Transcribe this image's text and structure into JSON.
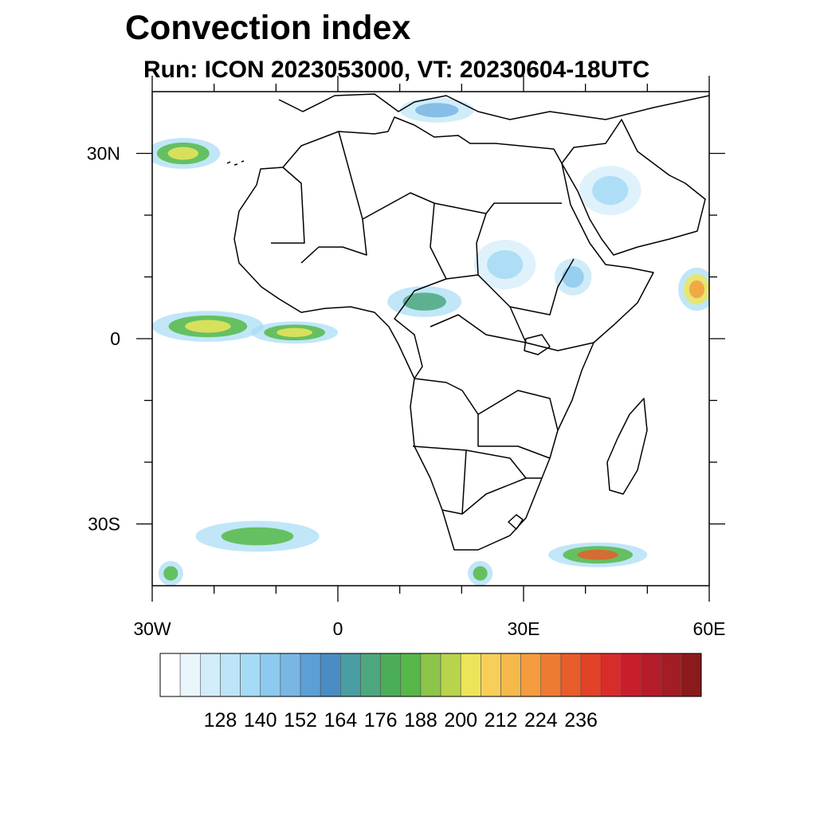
{
  "header": {
    "title": "Convection index",
    "subtitle": "Run: ICON 2023053000,  VT: 20230604-18UTC"
  },
  "map": {
    "lon_range": [
      -30,
      60
    ],
    "lat_range": [
      -40,
      40
    ],
    "x_ticks": [
      {
        "value": -30,
        "label": "30W"
      },
      {
        "value": 0,
        "label": "0"
      },
      {
        "value": 30,
        "label": "30E"
      },
      {
        "value": 60,
        "label": "60E"
      }
    ],
    "y_ticks": [
      {
        "value": 30,
        "label": "30N"
      },
      {
        "value": 0,
        "label": "0"
      },
      {
        "value": -30,
        "label": "30S"
      }
    ],
    "minor_x_ticks": [
      -20,
      -10,
      10,
      20,
      40,
      50
    ],
    "minor_y_ticks": [
      20,
      10,
      -10,
      -20
    ]
  },
  "colorbar": {
    "labels": [
      "128",
      "140",
      "152",
      "164",
      "176",
      "188",
      "200",
      "212",
      "224",
      "236"
    ],
    "colors": [
      "#ffffff",
      "#eaf5fc",
      "#d2ecf9",
      "#bde4f7",
      "#a5dbf5",
      "#8ccaef",
      "#7ab6e4",
      "#5c9fd5",
      "#4a8cc4",
      "#4a9ea3",
      "#4ca77e",
      "#4cad59",
      "#55b848",
      "#8cc54a",
      "#b7d44a",
      "#ece55a",
      "#f7cf58",
      "#f5b94b",
      "#f49c3e",
      "#ef7b33",
      "#e75d2b",
      "#e14228",
      "#d82c2b",
      "#c81e2c",
      "#b61b2a",
      "#a21d24",
      "#8b1a1c"
    ]
  },
  "convection_areas": [
    {
      "name": "east-atlantic-itcz",
      "lon": -21,
      "lat": 2,
      "rx": 9,
      "ry": 2.5,
      "colors": [
        "#a5dbf5",
        "#55b848",
        "#ece55a"
      ]
    },
    {
      "name": "central-atlantic-itcz",
      "lon": -7,
      "lat": 1,
      "rx": 7,
      "ry": 1.8,
      "colors": [
        "#a5dbf5",
        "#55b848",
        "#ece55a"
      ]
    },
    {
      "name": "north-atlantic-band",
      "lon": -25,
      "lat": 30,
      "rx": 6,
      "ry": 2.5,
      "colors": [
        "#a5dbf5",
        "#55b848",
        "#ece55a"
      ]
    },
    {
      "name": "central-africa",
      "lon": 14,
      "lat": 6,
      "rx": 6,
      "ry": 2.5,
      "colors": [
        "#a5dbf5",
        "#4ca77e"
      ]
    },
    {
      "name": "arabian-sea-cell",
      "lon": 58,
      "lat": 8,
      "rx": 3,
      "ry": 3.5,
      "colors": [
        "#a5dbf5",
        "#ece55a",
        "#f49c3e"
      ]
    },
    {
      "name": "south-atlantic-front",
      "lon": -13,
      "lat": -32,
      "rx": 10,
      "ry": 2.5,
      "colors": [
        "#a5dbf5",
        "#55b848"
      ]
    },
    {
      "name": "mozambique-channel-front",
      "lon": 42,
      "lat": -35,
      "rx": 8,
      "ry": 2,
      "colors": [
        "#a5dbf5",
        "#55b848",
        "#e75d2b"
      ]
    },
    {
      "name": "ethiopia-highlands",
      "lon": 38,
      "lat": 10,
      "rx": 3,
      "ry": 3,
      "colors": [
        "#bde4f7",
        "#8ccaef"
      ]
    },
    {
      "name": "sudan-sahel",
      "lon": 27,
      "lat": 12,
      "rx": 5,
      "ry": 4,
      "colors": [
        "#d2ecf9",
        "#a5dbf5"
      ]
    },
    {
      "name": "saudi-arabia",
      "lon": 44,
      "lat": 24,
      "rx": 5,
      "ry": 4,
      "colors": [
        "#d2ecf9",
        "#a5dbf5"
      ]
    },
    {
      "name": "mediterranean",
      "lon": 16,
      "lat": 37,
      "rx": 6,
      "ry": 2,
      "colors": [
        "#bde4f7",
        "#7ab6e4"
      ]
    },
    {
      "name": "far-south-atlantic",
      "lon": -27,
      "lat": -38,
      "rx": 2,
      "ry": 2,
      "colors": [
        "#a5dbf5",
        "#55b848"
      ]
    },
    {
      "name": "south-africa-coast",
      "lon": 23,
      "lat": -38,
      "rx": 2,
      "ry": 2,
      "colors": [
        "#a5dbf5",
        "#55b848"
      ]
    }
  ]
}
